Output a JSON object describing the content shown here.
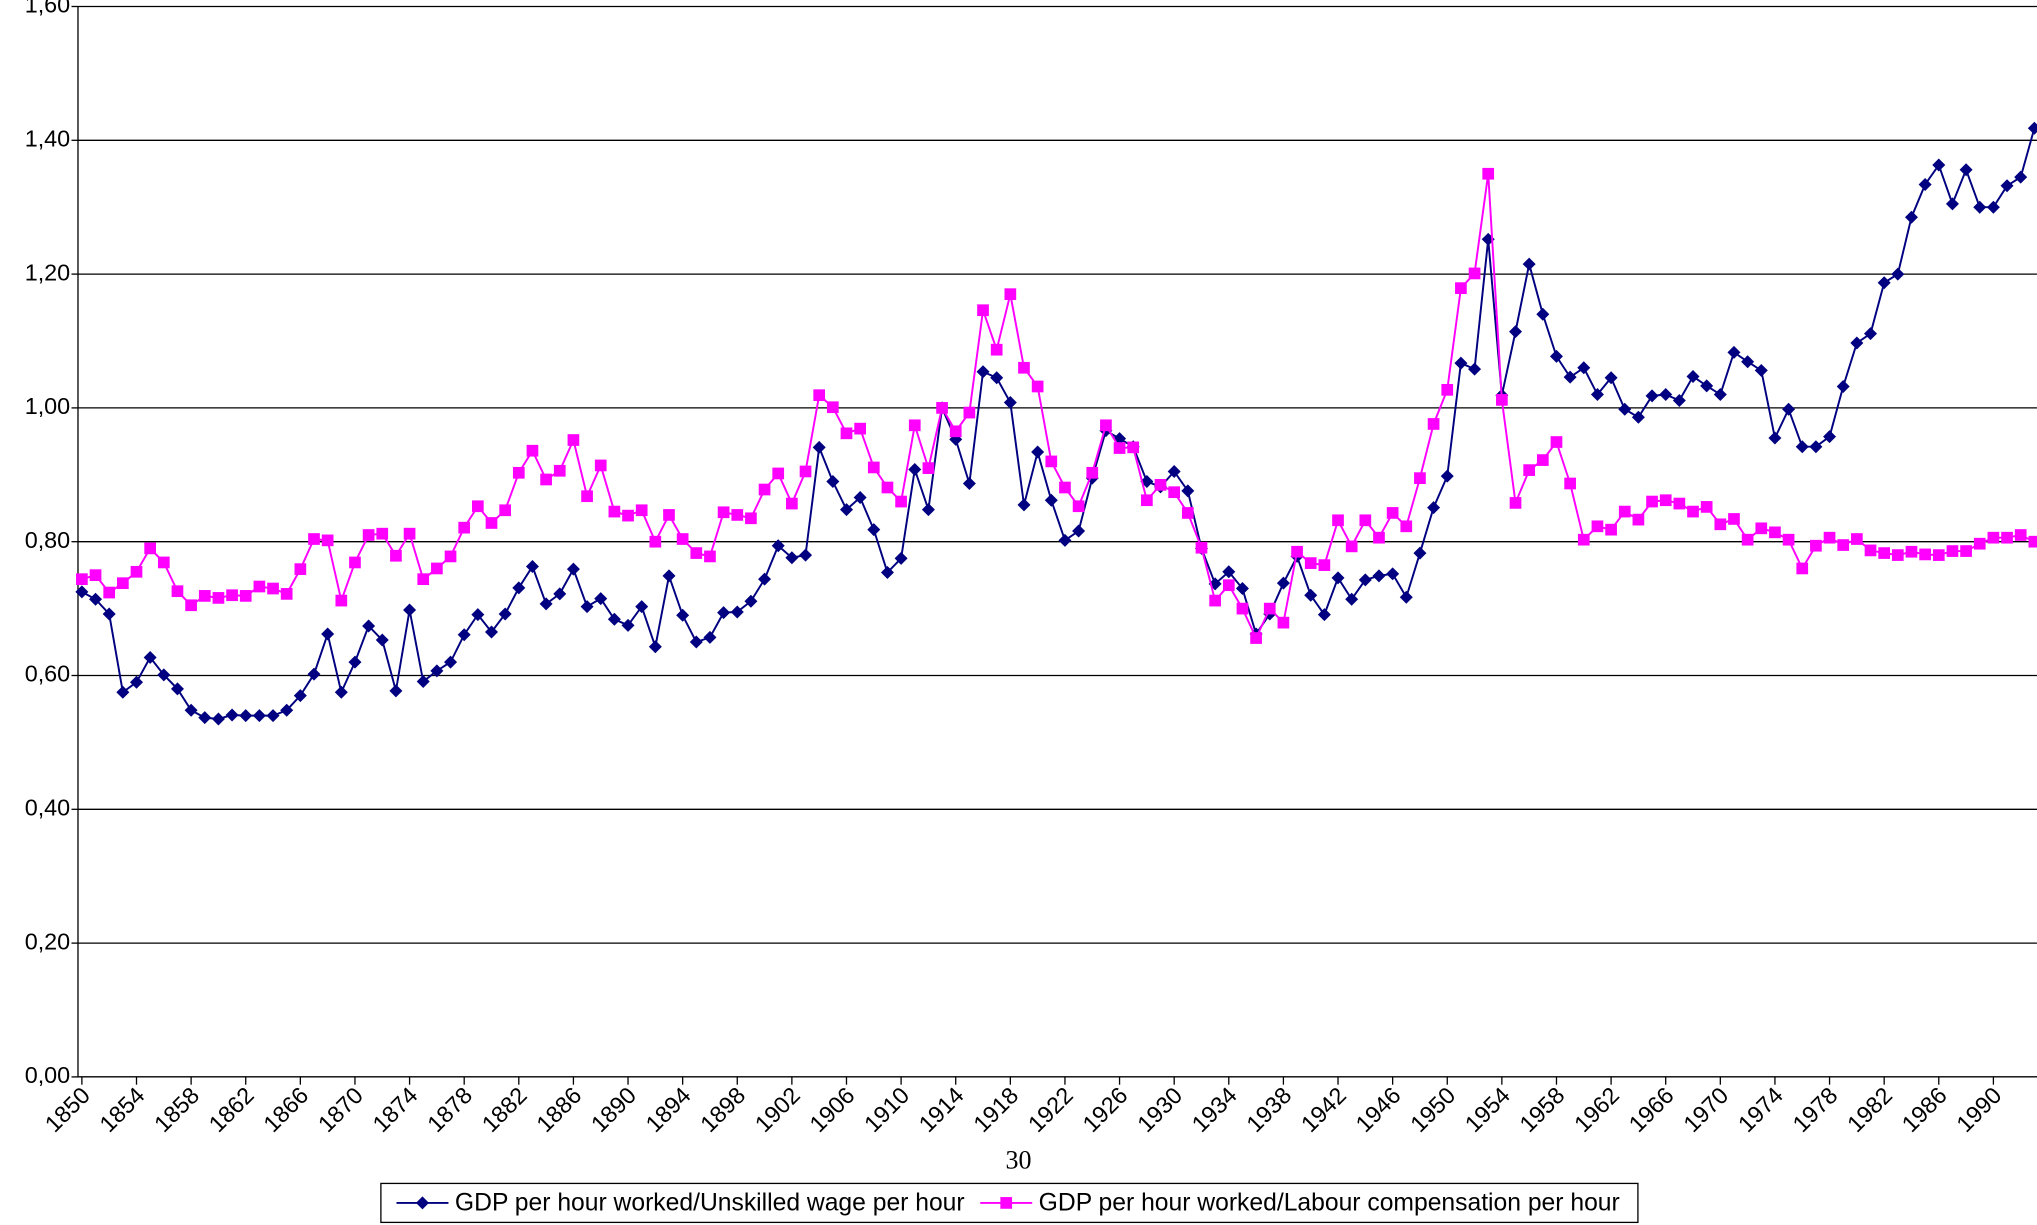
{
  "chart_data": {
    "type": "line",
    "footer": "30",
    "x": [
      1850,
      1851,
      1852,
      1853,
      1854,
      1855,
      1856,
      1857,
      1858,
      1859,
      1860,
      1861,
      1862,
      1863,
      1864,
      1865,
      1866,
      1867,
      1868,
      1869,
      1870,
      1871,
      1872,
      1873,
      1874,
      1875,
      1876,
      1877,
      1878,
      1879,
      1880,
      1881,
      1882,
      1883,
      1884,
      1885,
      1886,
      1887,
      1888,
      1889,
      1890,
      1891,
      1892,
      1893,
      1894,
      1895,
      1896,
      1897,
      1898,
      1899,
      1900,
      1901,
      1902,
      1903,
      1904,
      1905,
      1906,
      1907,
      1908,
      1909,
      1910,
      1911,
      1912,
      1913,
      1914,
      1915,
      1916,
      1917,
      1918,
      1919,
      1920,
      1921,
      1922,
      1923,
      1924,
      1925,
      1926,
      1927,
      1928,
      1929,
      1930,
      1931,
      1932,
      1933,
      1934,
      1935,
      1936,
      1937,
      1938,
      1939,
      1940,
      1941,
      1942,
      1943,
      1944,
      1945,
      1946,
      1947,
      1948,
      1949,
      1950,
      1951,
      1952,
      1953,
      1954,
      1955,
      1956,
      1957,
      1958,
      1959,
      1960,
      1961,
      1962,
      1963,
      1964,
      1965,
      1966,
      1967,
      1968,
      1969,
      1970,
      1971,
      1972,
      1973,
      1974,
      1975,
      1976,
      1977,
      1978,
      1979,
      1980,
      1981,
      1982,
      1983,
      1984,
      1985,
      1986,
      1987,
      1988,
      1989,
      1990,
      1991,
      1992,
      1993
    ],
    "series": [
      {
        "name": "GDP per hour worked/Unskilled wage per hour",
        "color": "#000080",
        "marker": "diamond",
        "values": [
          0.725,
          0.714,
          0.692,
          0.575,
          0.59,
          0.627,
          0.601,
          0.58,
          0.548,
          0.537,
          0.535,
          0.541,
          0.54,
          0.54,
          0.54,
          0.548,
          0.57,
          0.602,
          0.662,
          0.575,
          0.62,
          0.674,
          0.653,
          0.577,
          0.698,
          0.591,
          0.607,
          0.62,
          0.661,
          0.691,
          0.665,
          0.692,
          0.731,
          0.763,
          0.707,
          0.722,
          0.759,
          0.703,
          0.715,
          0.684,
          0.675,
          0.703,
          0.643,
          0.749,
          0.69,
          0.65,
          0.657,
          0.694,
          0.695,
          0.711,
          0.744,
          0.794,
          0.776,
          0.78,
          0.941,
          0.89,
          0.848,
          0.866,
          0.818,
          0.754,
          0.775,
          0.908,
          0.848,
          1.0,
          0.953,
          0.887,
          1.054,
          1.045,
          1.008,
          0.855,
          0.934,
          0.862,
          0.802,
          0.816,
          0.895,
          0.966,
          0.954,
          0.942,
          0.89,
          0.882,
          0.905,
          0.876,
          0.79,
          0.737,
          0.755,
          0.73,
          0.662,
          0.692,
          0.738,
          0.778,
          0.72,
          0.691,
          0.746,
          0.714,
          0.743,
          0.749,
          0.752,
          0.717,
          0.783,
          0.851,
          0.898,
          1.067,
          1.058,
          1.252,
          1.019,
          1.114,
          1.215,
          1.14,
          1.077,
          1.046,
          1.06,
          1.02,
          1.045,
          0.998,
          0.986,
          1.018,
          1.02,
          1.011,
          1.047,
          1.033,
          1.02,
          1.083,
          1.069,
          1.056,
          0.955,
          0.998,
          0.942,
          0.942,
          0.957,
          1.032,
          1.097,
          1.111,
          1.187,
          1.2,
          1.285,
          1.334,
          1.363,
          1.305,
          1.356,
          1.3,
          1.3,
          1.332,
          1.345,
          1.418
        ]
      },
      {
        "name": "GDP per hour worked/Labour compensation per hour",
        "color": "#ff00ff",
        "marker": "square",
        "values": [
          0.744,
          0.75,
          0.724,
          0.738,
          0.755,
          0.79,
          0.769,
          0.726,
          0.705,
          0.719,
          0.716,
          0.72,
          0.719,
          0.733,
          0.73,
          0.722,
          0.759,
          0.804,
          0.802,
          0.712,
          0.769,
          0.81,
          0.812,
          0.779,
          0.812,
          0.744,
          0.76,
          0.778,
          0.821,
          0.853,
          0.828,
          0.847,
          0.903,
          0.936,
          0.893,
          0.906,
          0.952,
          0.868,
          0.914,
          0.845,
          0.839,
          0.847,
          0.8,
          0.84,
          0.804,
          0.783,
          0.778,
          0.844,
          0.84,
          0.835,
          0.878,
          0.902,
          0.857,
          0.905,
          1.019,
          1.001,
          0.962,
          0.969,
          0.911,
          0.881,
          0.86,
          0.974,
          0.91,
          1.0,
          0.965,
          0.993,
          1.146,
          1.087,
          1.17,
          1.06,
          1.032,
          0.92,
          0.881,
          0.853,
          0.903,
          0.974,
          0.94,
          0.941,
          0.862,
          0.885,
          0.874,
          0.843,
          0.791,
          0.712,
          0.735,
          0.7,
          0.656,
          0.7,
          0.679,
          0.785,
          0.768,
          0.765,
          0.832,
          0.793,
          0.832,
          0.806,
          0.843,
          0.823,
          0.895,
          0.976,
          1.027,
          1.179,
          1.201,
          1.35,
          1.012,
          0.858,
          0.907,
          0.922,
          0.949,
          0.887,
          0.803,
          0.823,
          0.818,
          0.845,
          0.833,
          0.86,
          0.862,
          0.857,
          0.845,
          0.852,
          0.826,
          0.834,
          0.803,
          0.82,
          0.814,
          0.803,
          0.76,
          0.794,
          0.806,
          0.795,
          0.804,
          0.787,
          0.783,
          0.78,
          0.785,
          0.781,
          0.78,
          0.786,
          0.786,
          0.797,
          0.806,
          0.806,
          0.81,
          0.8
        ]
      }
    ],
    "xlim": [
      1850,
      1993
    ],
    "xticks": [
      1850,
      1854,
      1858,
      1862,
      1866,
      1870,
      1874,
      1878,
      1882,
      1886,
      1890,
      1894,
      1898,
      1902,
      1906,
      1910,
      1914,
      1918,
      1922,
      1926,
      1930,
      1934,
      1938,
      1942,
      1946,
      1950,
      1954,
      1958,
      1962,
      1966,
      1970,
      1974,
      1978,
      1982,
      1986,
      1990
    ],
    "ylim": [
      0,
      1.6
    ],
    "yticks": [
      {
        "value": 0,
        "label": "0,00"
      },
      {
        "value": 0.2,
        "label": "0,20"
      },
      {
        "value": 0.4,
        "label": "0,40"
      },
      {
        "value": 0.6,
        "label": "0,60"
      },
      {
        "value": 0.8,
        "label": "0,80"
      },
      {
        "value": 1.0,
        "label": "1,00"
      },
      {
        "value": 1.2,
        "label": "1,20"
      },
      {
        "value": 1.4,
        "label": "1,40"
      },
      {
        "value": 1.6,
        "label": "1,60"
      }
    ],
    "grid": true,
    "legend": "bottom"
  }
}
